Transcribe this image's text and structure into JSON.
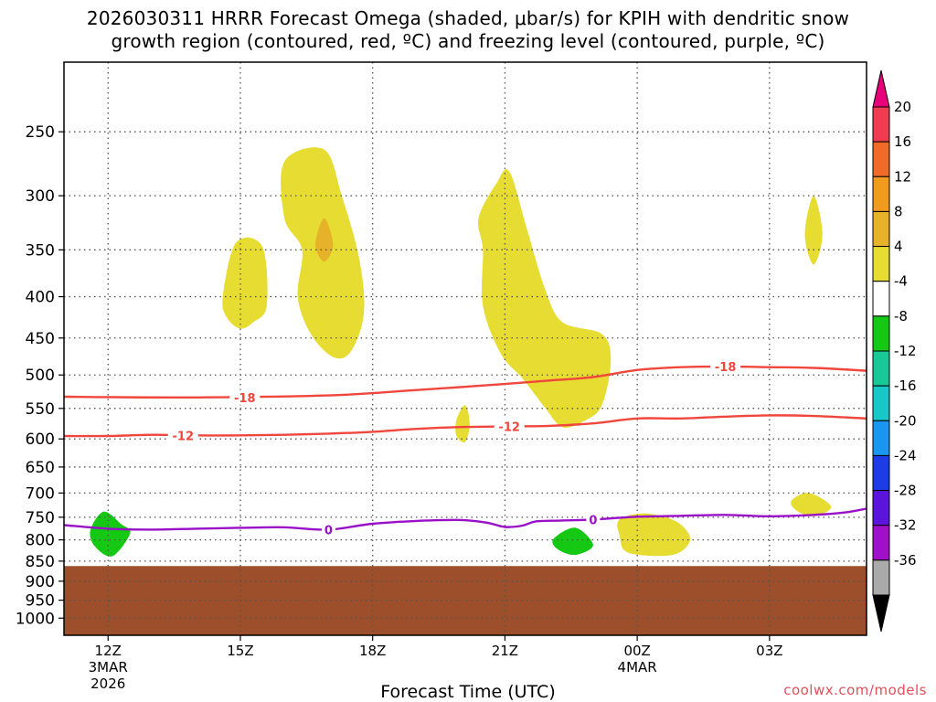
{
  "title_line1": "2026030311 HRRR Forecast Omega (shaded, μbar/s) for KPIH with dendritic snow",
  "title_line2": "growth region (contoured, red, ºC) and freezing level (contoured, purple, ºC)",
  "xlabel": "Forecast Time (UTC)",
  "credit": "coolwx.com/models",
  "chart_data": {
    "type": "time-height cross section",
    "y_axis": {
      "scale": "log",
      "ticks": [
        250,
        300,
        350,
        400,
        450,
        500,
        550,
        600,
        650,
        700,
        750,
        800,
        850,
        900,
        950,
        1000
      ],
      "ylim": [
        1050,
        205
      ]
    },
    "x_axis": {
      "range_hours": [
        11.0,
        29.2
      ],
      "ticks": [
        {
          "hour": 12,
          "label": "12Z",
          "sub1": "3MAR",
          "sub2": "2026"
        },
        {
          "hour": 15,
          "label": "15Z"
        },
        {
          "hour": 18,
          "label": "18Z"
        },
        {
          "hour": 21,
          "label": "21Z"
        },
        {
          "hour": 24,
          "label": "00Z",
          "sub1": "4MAR"
        },
        {
          "hour": 27,
          "label": "03Z"
        }
      ]
    },
    "grid": true,
    "colorbar": {
      "ticks": [
        20,
        16,
        12,
        8,
        4,
        -4,
        -8,
        -12,
        -16,
        -20,
        -24,
        -28,
        -32,
        -36
      ],
      "colors": [
        "#f03c50",
        "#f06a28",
        "#f09a1e",
        "#e6b22a",
        "#e6dc32",
        "#ffffff",
        "#14c814",
        "#18c896",
        "#18c8c8",
        "#1a96f0",
        "#1e3ce6",
        "#5a14dc",
        "#a010c8",
        "#aaaaaa"
      ],
      "top_arrow": "#e6007a",
      "bottom_arrow": "#000000"
    },
    "terrain": {
      "color": "#9c4f2a",
      "top_pressure": 862
    },
    "omega_regions": [
      {
        "color": "#e6dc32",
        "value_range": [
          4,
          8
        ],
        "points": [
          [
            14.6,
            400
          ],
          [
            14.9,
            343
          ],
          [
            15.5,
            347
          ],
          [
            15.6,
            410
          ],
          [
            15.3,
            430
          ],
          [
            15.0,
            438
          ],
          [
            14.7,
            425
          ]
        ]
      },
      {
        "color": "#e6dc32",
        "value_range": [
          4,
          8
        ],
        "points": [
          [
            16.0,
            272
          ],
          [
            16.9,
            263
          ],
          [
            17.3,
            300
          ],
          [
            17.7,
            360
          ],
          [
            17.8,
            420
          ],
          [
            17.5,
            468
          ],
          [
            17.1,
            475
          ],
          [
            16.6,
            445
          ],
          [
            16.3,
            400
          ],
          [
            16.4,
            350
          ],
          [
            16.0,
            320
          ]
        ]
      },
      {
        "color": "#e6b22a",
        "value_range": [
          8,
          12
        ],
        "points": [
          [
            16.9,
            320
          ],
          [
            17.1,
            345
          ],
          [
            16.9,
            362
          ],
          [
            16.7,
            345
          ]
        ]
      },
      {
        "color": "#e6dc32",
        "value_range": [
          4,
          8
        ],
        "points": [
          [
            20.4,
            320
          ],
          [
            20.8,
            290
          ],
          [
            21.1,
            280
          ],
          [
            21.5,
            330
          ],
          [
            21.9,
            390
          ],
          [
            22.3,
            430
          ],
          [
            23.2,
            445
          ],
          [
            23.4,
            480
          ],
          [
            23.2,
            545
          ],
          [
            22.8,
            570
          ],
          [
            22.3,
            580
          ],
          [
            21.9,
            548
          ],
          [
            21.4,
            505
          ],
          [
            20.9,
            470
          ],
          [
            20.5,
            410
          ],
          [
            20.5,
            350
          ]
        ]
      },
      {
        "color": "#e6dc32",
        "value_range": [
          4,
          8
        ],
        "points": [
          [
            19.9,
            568
          ],
          [
            20.1,
            545
          ],
          [
            20.2,
            575
          ],
          [
            20.1,
            605
          ],
          [
            19.9,
            595
          ]
        ]
      },
      {
        "color": "#e6dc32",
        "value_range": [
          4,
          8
        ],
        "points": [
          [
            27.8,
            335
          ],
          [
            28.0,
            300
          ],
          [
            28.2,
            335
          ],
          [
            28.0,
            365
          ]
        ]
      },
      {
        "color": "#e6dc32",
        "value_range": [
          4,
          8
        ],
        "points": [
          [
            27.5,
            715
          ],
          [
            27.9,
            700
          ],
          [
            28.4,
            728
          ],
          [
            28.0,
            748
          ],
          [
            27.6,
            735
          ]
        ]
      },
      {
        "color": "#e6dc32",
        "value_range": [
          4,
          8
        ],
        "points": [
          [
            23.6,
            755
          ],
          [
            24.2,
            742
          ],
          [
            24.9,
            760
          ],
          [
            25.2,
            800
          ],
          [
            24.8,
            835
          ],
          [
            23.8,
            830
          ],
          [
            23.6,
            790
          ]
        ]
      },
      {
        "color": "#14c814",
        "value_range": [
          -8,
          -4
        ],
        "points": [
          [
            11.6,
            778
          ],
          [
            11.9,
            738
          ],
          [
            12.3,
            765
          ],
          [
            12.5,
            785
          ],
          [
            12.1,
            838
          ],
          [
            11.7,
            815
          ]
        ]
      },
      {
        "color": "#14c814",
        "value_range": [
          -8,
          -4
        ],
        "points": [
          [
            22.1,
            798
          ],
          [
            22.6,
            773
          ],
          [
            23.0,
            812
          ],
          [
            22.6,
            835
          ],
          [
            22.2,
            822
          ]
        ]
      }
    ],
    "contours": [
      {
        "label": "-18",
        "color": "#f0463c",
        "points": [
          [
            11.0,
            532
          ],
          [
            14.0,
            533
          ],
          [
            17.0,
            530
          ],
          [
            19.0,
            522
          ],
          [
            21.0,
            513
          ],
          [
            22.0,
            508
          ],
          [
            23.0,
            503
          ],
          [
            24.0,
            493
          ],
          [
            25.0,
            489
          ],
          [
            26.0,
            488
          ],
          [
            27.0,
            489
          ],
          [
            28.0,
            490
          ],
          [
            29.2,
            494
          ]
        ],
        "label_at": [
          [
            15.1,
            533
          ],
          [
            26.0,
            488
          ]
        ]
      },
      {
        "label": "-12",
        "color": "#f0463c",
        "points": [
          [
            11.0,
            595
          ],
          [
            12.0,
            595
          ],
          [
            13.0,
            593
          ],
          [
            14.0,
            594
          ],
          [
            15.0,
            594
          ],
          [
            16.0,
            593
          ],
          [
            17.0,
            591
          ],
          [
            18.0,
            588
          ],
          [
            19.0,
            583
          ],
          [
            20.0,
            580
          ],
          [
            21.0,
            579
          ],
          [
            22.0,
            578
          ],
          [
            23.0,
            574
          ],
          [
            24.0,
            566
          ],
          [
            25.0,
            566
          ],
          [
            26.0,
            563
          ],
          [
            27.0,
            561
          ],
          [
            28.0,
            562
          ],
          [
            29.2,
            566
          ]
        ],
        "label_at": [
          [
            13.7,
            594
          ],
          [
            21.1,
            579
          ]
        ]
      },
      {
        "label": "0",
        "color": "#9a10c8",
        "points": [
          [
            11.0,
            767
          ],
          [
            12.0,
            775
          ],
          [
            13.0,
            777
          ],
          [
            14.0,
            775
          ],
          [
            15.0,
            773
          ],
          [
            16.0,
            772
          ],
          [
            17.0,
            777
          ],
          [
            18.0,
            764
          ],
          [
            19.0,
            758
          ],
          [
            20.0,
            756
          ],
          [
            20.6,
            762
          ],
          [
            21.0,
            771
          ],
          [
            21.4,
            768
          ],
          [
            21.7,
            759
          ],
          [
            22.3,
            757
          ],
          [
            23.0,
            755
          ],
          [
            24.0,
            749
          ],
          [
            25.0,
            747
          ],
          [
            26.0,
            745
          ],
          [
            27.0,
            748
          ],
          [
            28.0,
            745
          ],
          [
            28.7,
            740
          ],
          [
            29.2,
            732
          ]
        ],
        "label_at": [
          [
            17.0,
            777
          ],
          [
            23.0,
            755
          ]
        ]
      }
    ]
  }
}
